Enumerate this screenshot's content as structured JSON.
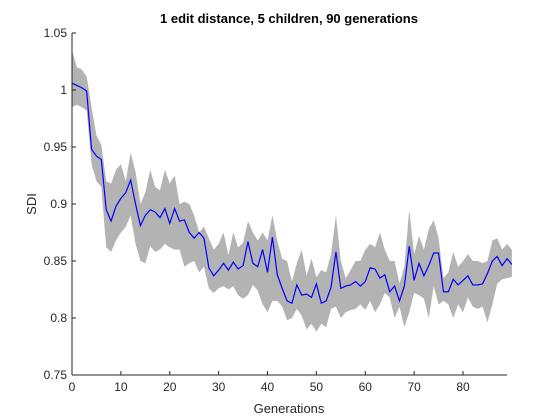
{
  "chart_data": {
    "type": "line",
    "title": "1 edit distance, 5 children, 90 generations",
    "xlabel": "Generations",
    "ylabel": "SDI",
    "xlim": [
      0,
      89
    ],
    "ylim": [
      0.75,
      1.05
    ],
    "xticks": [
      0,
      10,
      20,
      30,
      40,
      50,
      60,
      70,
      80
    ],
    "yticks": [
      0.75,
      0.8,
      0.85,
      0.9,
      0.95,
      1,
      1.05
    ],
    "ytick_labels": [
      "0.75",
      "0.8",
      "0.85",
      "0.9",
      "0.95",
      "1",
      "1.05"
    ],
    "grid": false,
    "colors": {
      "line": "#0000ff",
      "band": "#b3b3b3"
    },
    "series": [
      {
        "values": [
          1.006,
          1.004,
          1.002,
          0.999,
          0.948,
          0.942,
          0.939,
          0.895,
          0.885,
          0.898,
          0.905,
          0.91,
          0.921,
          0.9,
          0.881,
          0.89,
          0.895,
          0.893,
          0.888,
          0.896,
          0.883,
          0.896,
          0.885,
          0.886,
          0.875,
          0.87,
          0.875,
          0.87,
          0.844,
          0.837,
          0.842,
          0.848,
          0.842,
          0.849,
          0.843,
          0.846,
          0.867,
          0.848,
          0.845,
          0.86,
          0.84,
          0.871,
          0.838,
          0.826,
          0.815,
          0.813,
          0.829,
          0.82,
          0.821,
          0.818,
          0.83,
          0.813,
          0.815,
          0.827,
          0.858,
          0.826,
          0.828,
          0.829,
          0.832,
          0.828,
          0.832,
          0.844,
          0.843,
          0.835,
          0.838,
          0.823,
          0.828,
          0.815,
          0.828,
          0.863,
          0.833,
          0.848,
          0.837,
          0.846,
          0.857,
          0.857,
          0.823,
          0.823,
          0.834,
          0.829,
          0.833,
          0.837,
          0.829,
          0.829,
          0.83,
          0.839,
          0.85,
          0.854,
          0.846,
          0.852,
          0.847
        ],
        "lower": [
          0.985,
          0.987,
          0.985,
          0.982,
          0.935,
          0.92,
          0.915,
          0.862,
          0.858,
          0.868,
          0.875,
          0.88,
          0.89,
          0.865,
          0.85,
          0.848,
          0.863,
          0.858,
          0.86,
          0.865,
          0.862,
          0.86,
          0.86,
          0.845,
          0.848,
          0.85,
          0.84,
          0.845,
          0.826,
          0.822,
          0.826,
          0.828,
          0.825,
          0.828,
          0.82,
          0.817,
          0.82,
          0.829,
          0.824,
          0.812,
          0.805,
          0.815,
          0.815,
          0.81,
          0.798,
          0.8,
          0.808,
          0.802,
          0.79,
          0.795,
          0.788,
          0.795,
          0.792,
          0.808,
          0.81,
          0.8,
          0.805,
          0.807,
          0.808,
          0.812,
          0.807,
          0.815,
          0.805,
          0.812,
          0.822,
          0.818,
          0.8,
          0.81,
          0.792,
          0.805,
          0.822,
          0.82,
          0.817,
          0.8,
          0.828,
          0.812,
          0.815,
          0.812,
          0.8,
          0.812,
          0.805,
          0.818,
          0.81,
          0.808,
          0.81,
          0.796,
          0.812,
          0.83,
          0.834,
          0.835,
          0.836
        ],
        "upper": [
          1.035,
          1.02,
          1.018,
          1.012,
          0.985,
          0.96,
          0.952,
          0.92,
          0.918,
          0.93,
          0.935,
          0.92,
          0.945,
          0.928,
          0.9,
          0.91,
          0.93,
          0.915,
          0.912,
          0.93,
          0.918,
          0.925,
          0.9,
          0.902,
          0.9,
          0.89,
          0.875,
          0.88,
          0.87,
          0.86,
          0.865,
          0.875,
          0.855,
          0.875,
          0.862,
          0.866,
          0.885,
          0.875,
          0.868,
          0.875,
          0.868,
          0.89,
          0.868,
          0.852,
          0.85,
          0.832,
          0.848,
          0.86,
          0.837,
          0.852,
          0.836,
          0.842,
          0.84,
          0.856,
          0.89,
          0.85,
          0.835,
          0.842,
          0.85,
          0.85,
          0.86,
          0.865,
          0.862,
          0.875,
          0.86,
          0.85,
          0.85,
          0.83,
          0.845,
          0.895,
          0.856,
          0.872,
          0.86,
          0.878,
          0.886,
          0.87,
          0.835,
          0.84,
          0.858,
          0.845,
          0.85,
          0.856,
          0.85,
          0.85,
          0.848,
          0.85,
          0.868,
          0.87,
          0.86,
          0.865,
          0.86
        ]
      }
    ]
  }
}
